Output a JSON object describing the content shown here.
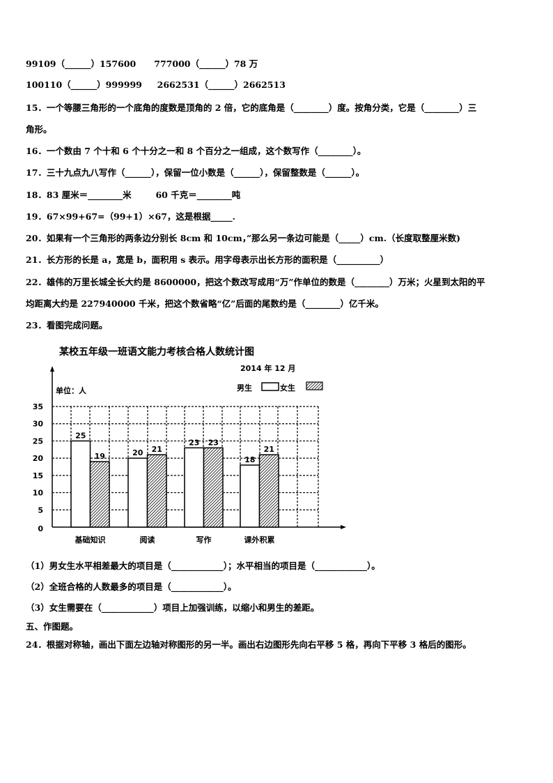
{
  "lines": [
    "99109（______）157600      777000（______）78 万",
    "100110（______）999999     2662531（______）2662513",
    "15．一个等腰三角形的一个底角的度数是顶角的 2 倍，它的底角是（________）度。按角分类，它是（________）三",
    "角形。",
    "16．一个数由 7 个十和 6 个十分之一和 8 个百分之一组成，这个数写作（________）。",
    "17．三十九点九八写作（______），保留一位小数是（______），保留整数是（______）。",
    "18．83 厘米＝________米        60 千克＝________吨",
    "19．67×99+67=（99+1）×67，这是根据_____.",
    "20．如果有一个三角形的两条边分别长 8cm 和 10cm，”那么另一条边可能是（_____）cm.（长度取整厘米数)",
    "21．长方形的长是 a，宽是 b，面积用 s 表示。用字母表示出长方形的面积是（__________）",
    "22．雄伟的万里长城全长大约是 8600000，把这个数改写成用“万”作单位的数是（________）万米；火星到太阳的平",
    "均距离大约是 227940000 千米，把这个数省略“亿”后面的尾数约是（________）亿千米。",
    "23．看图完成问题。"
  ],
  "sub_lines": [
    "（1）男女生水平相差最大的项目是（____________）；水平相当的项目是（____________）。",
    "（2）全班合格的人数最多的项目是（____________）。",
    "（3）女生需要在（____________）项目上加强训练，以缩小和男生的差距。",
    "五、作图题。",
    "24．根据对称轴，画出下面左边轴对称图形的另一半。画出右边图形先向右平移 5 格，再向下平移 3 格后的图形。"
  ],
  "chart_data": {
    "type": "bar",
    "title": "某校五年级一班语文能力考核合格人数统计图",
    "subtitle": "2014 年 12 月",
    "ylabel": "单位：人",
    "categories": [
      "基础知识",
      "阅读",
      "写作",
      "课外积累"
    ],
    "series": [
      {
        "name": "男生",
        "values": [
          25,
          20,
          23,
          18
        ],
        "fill": "white"
      },
      {
        "name": "女生",
        "values": [
          19,
          21,
          23,
          21
        ],
        "fill": "hatched"
      }
    ],
    "yticks": [
      "0",
      "5",
      "10",
      "15",
      "20",
      "25",
      "30",
      "35"
    ],
    "ylim": [
      0,
      35
    ],
    "grid": true,
    "legend_placement": "top-right"
  }
}
